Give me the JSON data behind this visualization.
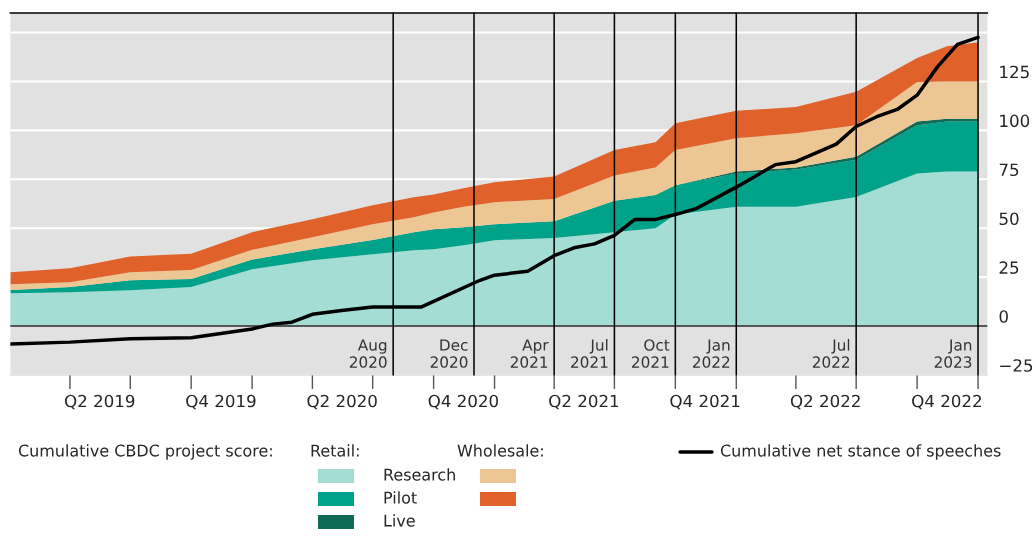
{
  "chart_data": {
    "type": "area",
    "stacked": true,
    "legend_title": "Cumulative CBDC project score:",
    "annotations": [
      "Retail:",
      "Wholesale:"
    ],
    "x": [
      "2019-01-01",
      "2019-04-01",
      "2019-07-01",
      "2019-10-01",
      "2020-01-01",
      "2020-04-01",
      "2020-07-01",
      "2020-09-01",
      "2020-10-01",
      "2020-11-15",
      "2021-01-01",
      "2021-04-01",
      "2021-07-01",
      "2021-09-01",
      "2021-10-01",
      "2022-01-01",
      "2022-04-01",
      "2022-07-01",
      "2022-10-01",
      "2022-11-15",
      "2023-01-01"
    ],
    "series": [
      {
        "name": "Research",
        "color": "#a3ddd3",
        "values": [
          16.8,
          17.3,
          18.3,
          20,
          29,
          33.7,
          36.7,
          38.8,
          39.3,
          41.3,
          43.9,
          45,
          48,
          50,
          57,
          61,
          61,
          66,
          78,
          79,
          79
        ]
      },
      {
        "name": "Pilot",
        "color": "#00a28a",
        "values": [
          1.6,
          2.7,
          5.1,
          4,
          5,
          5.6,
          7.3,
          9.2,
          10.2,
          9.2,
          8.1,
          8.6,
          16,
          17,
          15,
          17,
          19,
          19,
          24.6,
          25.6,
          25.6
        ]
      },
      {
        "name": "Live",
        "color": "#0e6b55",
        "values": [
          0,
          0,
          0,
          0,
          0,
          0,
          0,
          0,
          0,
          0,
          0,
          0,
          0,
          0,
          0,
          1,
          1,
          1.5,
          2,
          1.4,
          1.4
        ]
      },
      {
        "color": "#edc793",
        "values": [
          3,
          2.4,
          4.1,
          4.6,
          5,
          6.1,
          8,
          7.6,
          8.5,
          10.5,
          11.3,
          11.4,
          13,
          14,
          18,
          17,
          17.5,
          16.1,
          20.1,
          19,
          19
        ]
      },
      {
        "color": "#e0622a",
        "values": [
          6.1,
          7.2,
          8.1,
          8.4,
          9,
          9.2,
          9.7,
          10.2,
          9.3,
          9.4,
          10.2,
          11.5,
          13,
          13,
          13.6,
          14,
          13.5,
          17.1,
          12.3,
          18,
          20
        ]
      },
      {
        "type": "line",
        "name": "Cumulative net stance of speeches",
        "color": "#000000",
        "x": [
          "2019-01-01",
          "2019-04-01",
          "2019-07-01",
          "2019-10-01",
          "2020-01-01",
          "2020-02-01",
          "2020-03-01",
          "2020-04-01",
          "2020-05-15",
          "2020-07-01",
          "2020-09-12",
          "2020-12-10",
          "2021-01-01",
          "2021-02-20",
          "2021-04-01",
          "2021-05-01",
          "2021-06-01",
          "2021-07-01",
          "2021-08-01",
          "2021-09-01",
          "2021-10-01",
          "2021-11-01",
          "2022-01-01",
          "2022-03-01",
          "2022-04-01",
          "2022-06-01",
          "2022-07-01",
          "2022-08-01",
          "2022-09-01",
          "2022-10-01",
          "2022-11-01",
          "2022-12-01",
          "2023-01-01"
        ],
        "values": [
          -9.2,
          -8.2,
          -6.5,
          -6,
          -1.5,
          1,
          2,
          6,
          8,
          9.7,
          9.7,
          23.4,
          26,
          28,
          36,
          40,
          42,
          46.4,
          54.5,
          54.5,
          57,
          60,
          71,
          82.5,
          84,
          93,
          102,
          107,
          110.7,
          118,
          132.6,
          144,
          147.5
        ]
      }
    ],
    "xlim": [
      "2019-01-01",
      "2023-01-15"
    ],
    "xticks": [
      {
        "value": "2019-04-01",
        "label": null
      },
      {
        "value": "2019-07-01",
        "label": null
      },
      {
        "value": "2019-10-01",
        "label": null
      },
      {
        "value": "2020-01-01",
        "label": null
      },
      {
        "value": "2020-04-01",
        "label": null
      },
      {
        "value": "2020-07-01",
        "label": null
      },
      {
        "value": "2020-10-01",
        "label": null
      },
      {
        "value": "2021-01-01",
        "label": null
      },
      {
        "value": "2021-04-01",
        "label": null
      },
      {
        "value": "2021-07-01",
        "label": null
      },
      {
        "value": "2021-10-01",
        "label": null
      },
      {
        "value": "2022-01-01",
        "label": null
      },
      {
        "value": "2022-04-01",
        "label": null
      },
      {
        "value": "2022-07-01",
        "label": null
      },
      {
        "value": "2022-10-01",
        "label": null
      },
      {
        "value": "2023-01-01",
        "label": null
      },
      {
        "value": "2019-05-16",
        "label": "Q2 2019"
      },
      {
        "value": "2019-11-15",
        "label": "Q4 2019"
      },
      {
        "value": "2020-05-16",
        "label": "Q2 2020"
      },
      {
        "value": "2020-11-15",
        "label": "Q4 2020"
      },
      {
        "value": "2021-05-16",
        "label": "Q2 2021"
      },
      {
        "value": "2021-11-15",
        "label": "Q4 2021"
      },
      {
        "value": "2022-05-16",
        "label": "Q2 2022"
      },
      {
        "value": "2022-11-15",
        "label": "Q4 2022"
      }
    ],
    "ylim": [
      -25,
      160
    ],
    "yticks": [
      -25,
      0,
      25,
      50,
      75,
      100,
      125,
      {
        "value": 150,
        "label": null
      }
    ],
    "ref_lines": [
      {
        "axis": "y",
        "value": 0,
        "color": "#555555"
      },
      {
        "axis": "x",
        "value": "2020-08-01",
        "label": "Aug\n2020",
        "color": "#000000"
      },
      {
        "axis": "x",
        "value": "2020-12-01",
        "label": "Dec\n2020",
        "color": "#000000"
      },
      {
        "axis": "x",
        "value": "2021-04-01",
        "label": "Apr\n2021",
        "color": "#000000"
      },
      {
        "axis": "x",
        "value": "2021-07-01",
        "label": "Jul\n2021",
        "color": "#000000"
      },
      {
        "axis": "x",
        "value": "2021-10-01",
        "label": "Oct\n2021",
        "color": "#000000"
      },
      {
        "axis": "x",
        "value": "2022-01-01",
        "label": "Jan\n2022",
        "color": "#000000"
      },
      {
        "axis": "x",
        "value": "2022-07-01",
        "label": "Jul\n2022",
        "color": "#000000"
      },
      {
        "axis": "x",
        "value": "2023-01-01",
        "label": "Jan\n2023",
        "color": "#000000"
      }
    ],
    "grid": "y",
    "legend": "bottom"
  }
}
